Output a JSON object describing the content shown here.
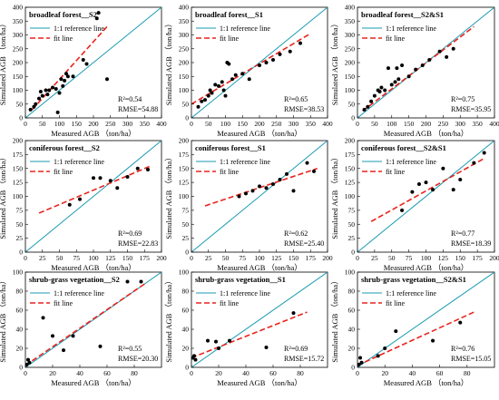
{
  "chart_data": [
    {
      "type": "scatter",
      "title": "broadleaf forest__S2",
      "xlabel": "Measured AGB （ton/ha）",
      "ylabel": "Simulated AGB （ton/ha）",
      "xlim": [
        0,
        400
      ],
      "ylim": [
        0,
        400
      ],
      "xticks": [
        0,
        50,
        100,
        150,
        200,
        250,
        300,
        350,
        400
      ],
      "yticks": [
        0,
        50,
        100,
        150,
        200,
        250,
        300,
        350,
        400
      ],
      "legend": [
        "1:1 reference line",
        "fit line"
      ],
      "r2": "R²=0.54",
      "rmse": "RMSE=54.88",
      "fit": [
        [
          20,
          30
        ],
        [
          240,
          330
        ]
      ],
      "points": [
        [
          15,
          30
        ],
        [
          25,
          40
        ],
        [
          30,
          50
        ],
        [
          40,
          70
        ],
        [
          45,
          95
        ],
        [
          50,
          80
        ],
        [
          60,
          100
        ],
        [
          65,
          85
        ],
        [
          70,
          100
        ],
        [
          80,
          110
        ],
        [
          90,
          105
        ],
        [
          95,
          20
        ],
        [
          100,
          90
        ],
        [
          105,
          140
        ],
        [
          110,
          115
        ],
        [
          115,
          135
        ],
        [
          120,
          160
        ],
        [
          125,
          150
        ],
        [
          140,
          150
        ],
        [
          170,
          210
        ],
        [
          180,
          195
        ],
        [
          210,
          360
        ],
        [
          215,
          380
        ],
        [
          240,
          140
        ]
      ]
    },
    {
      "type": "scatter",
      "title": "broadleaf forest__S1",
      "xlabel": "Measured AGB （ton/ha）",
      "ylabel": "Simulated AGB （ton/ha）",
      "xlim": [
        0,
        400
      ],
      "ylim": [
        0,
        400
      ],
      "xticks": [
        0,
        50,
        100,
        150,
        200,
        250,
        300,
        350,
        400
      ],
      "yticks": [
        0,
        50,
        100,
        150,
        200,
        250,
        300,
        350,
        400
      ],
      "legend": [
        "1:1 reference line",
        "fit line"
      ],
      "r2": "R²=0.65",
      "rmse": "RMSE=38.53",
      "fit": [
        [
          0,
          50
        ],
        [
          350,
          305
        ]
      ],
      "points": [
        [
          20,
          40
        ],
        [
          30,
          60
        ],
        [
          40,
          65
        ],
        [
          50,
          80
        ],
        [
          55,
          100
        ],
        [
          60,
          90
        ],
        [
          70,
          120
        ],
        [
          80,
          115
        ],
        [
          90,
          130
        ],
        [
          95,
          100
        ],
        [
          100,
          80
        ],
        [
          105,
          200
        ],
        [
          110,
          195
        ],
        [
          120,
          140
        ],
        [
          130,
          155
        ],
        [
          150,
          160
        ],
        [
          170,
          140
        ],
        [
          200,
          190
        ],
        [
          220,
          200
        ],
        [
          240,
          210
        ],
        [
          260,
          230
        ],
        [
          290,
          240
        ],
        [
          320,
          270
        ]
      ]
    },
    {
      "type": "scatter",
      "title": "broadleaf forest__S2&S1",
      "xlabel": "Measured AGB （ton/ha）",
      "ylabel": "Simulated AGB （ton/ha）",
      "xlim": [
        0,
        400
      ],
      "ylim": [
        0,
        400
      ],
      "xticks": [
        0,
        50,
        100,
        150,
        200,
        250,
        300,
        350,
        400
      ],
      "yticks": [
        0,
        50,
        100,
        150,
        200,
        250,
        300,
        350,
        400
      ],
      "legend": [
        "1:1 reference line",
        "fit line"
      ],
      "r2": "R²=0.75",
      "rmse": "RMSE=35.95",
      "fit": [
        [
          15,
          25
        ],
        [
          340,
          330
        ]
      ],
      "points": [
        [
          20,
          30
        ],
        [
          30,
          40
        ],
        [
          40,
          60
        ],
        [
          50,
          80
        ],
        [
          60,
          100
        ],
        [
          65,
          95
        ],
        [
          70,
          110
        ],
        [
          80,
          100
        ],
        [
          90,
          180
        ],
        [
          100,
          120
        ],
        [
          110,
          130
        ],
        [
          115,
          180
        ],
        [
          120,
          140
        ],
        [
          130,
          190
        ],
        [
          150,
          150
        ],
        [
          170,
          175
        ],
        [
          190,
          190
        ],
        [
          210,
          210
        ],
        [
          240,
          240
        ],
        [
          260,
          220
        ],
        [
          280,
          250
        ]
      ]
    },
    {
      "type": "scatter",
      "title": "coniferous forest__S2",
      "xlabel": "Measured AGB （ton/ha）",
      "ylabel": "Simulated AGB （ton/ha）",
      "xlim": [
        0,
        200
      ],
      "ylim": [
        0,
        200
      ],
      "xticks": [
        0,
        25,
        50,
        75,
        100,
        125,
        150,
        175,
        200
      ],
      "yticks": [
        0,
        25,
        50,
        75,
        100,
        125,
        150,
        175,
        200
      ],
      "legend": [
        "1:1 reference line",
        "fit line"
      ],
      "r2": "R²=0.69",
      "rmse": "RMSE=22.83",
      "fit": [
        [
          20,
          70
        ],
        [
          185,
          155
        ]
      ],
      "points": [
        [
          65,
          85
        ],
        [
          80,
          95
        ],
        [
          100,
          133
        ],
        [
          110,
          133
        ],
        [
          125,
          128
        ],
        [
          135,
          115
        ],
        [
          150,
          135
        ],
        [
          165,
          150
        ],
        [
          180,
          148
        ]
      ]
    },
    {
      "type": "scatter",
      "title": "coniferous forest__S1",
      "xlabel": "Measured AGB （ton/ha）",
      "ylabel": "Simulated AGB （ton/ha）",
      "xlim": [
        0,
        200
      ],
      "ylim": [
        0,
        200
      ],
      "xticks": [
        0,
        25,
        50,
        75,
        100,
        125,
        150,
        175,
        200
      ],
      "yticks": [
        0,
        25,
        50,
        75,
        100,
        125,
        150,
        175,
        200
      ],
      "legend": [
        "1:1 reference line",
        "fit line"
      ],
      "r2": "R²=0.62",
      "rmse": "RMSE=25.40",
      "fit": [
        [
          20,
          83
        ],
        [
          185,
          150
        ]
      ],
      "points": [
        [
          70,
          100
        ],
        [
          80,
          105
        ],
        [
          90,
          110
        ],
        [
          100,
          118
        ],
        [
          110,
          115
        ],
        [
          120,
          122
        ],
        [
          130,
          130
        ],
        [
          140,
          140
        ],
        [
          150,
          110
        ],
        [
          170,
          160
        ],
        [
          180,
          145
        ]
      ]
    },
    {
      "type": "scatter",
      "title": "coniferous forest__S2&S1",
      "xlabel": "Measured AGB （ton/ha）",
      "ylabel": "Simulated AGB （ton/ha）",
      "xlim": [
        0,
        200
      ],
      "ylim": [
        0,
        200
      ],
      "xticks": [
        0,
        25,
        50,
        75,
        100,
        125,
        150,
        175,
        200
      ],
      "yticks": [
        0,
        25,
        50,
        75,
        100,
        125,
        150,
        175,
        200
      ],
      "legend": [
        "1:1 reference line",
        "fit line"
      ],
      "r2": "R²=0.77",
      "rmse": "RMSE=18.39",
      "fit": [
        [
          20,
          55
        ],
        [
          185,
          168
        ]
      ],
      "points": [
        [
          65,
          75
        ],
        [
          80,
          108
        ],
        [
          90,
          122
        ],
        [
          100,
          125
        ],
        [
          110,
          112
        ],
        [
          125,
          150
        ],
        [
          140,
          112
        ],
        [
          150,
          130
        ],
        [
          170,
          160
        ],
        [
          185,
          178
        ]
      ]
    },
    {
      "type": "scatter",
      "title": "shrub-grass vegetation__S2",
      "xlabel": "Measured AGB （ton/ha）",
      "ylabel": "Simulated AGB （ton/ha）",
      "xlim": [
        0,
        100
      ],
      "ylim": [
        0,
        100
      ],
      "xticks": [
        0,
        20,
        40,
        60,
        80
      ],
      "yticks": [
        0,
        20,
        40,
        60,
        80,
        100
      ],
      "legend": [
        "1:1 reference line",
        "fit line"
      ],
      "r2": "R²=0.55",
      "rmse": "RMSE=20.30",
      "fit": [
        [
          0,
          2
        ],
        [
          88,
          88
        ]
      ],
      "points": [
        [
          1,
          3
        ],
        [
          2,
          8
        ],
        [
          3,
          5
        ],
        [
          13,
          52
        ],
        [
          20,
          33
        ],
        [
          28,
          18
        ],
        [
          35,
          33
        ],
        [
          55,
          22
        ],
        [
          75,
          90
        ],
        [
          85,
          90
        ]
      ]
    },
    {
      "type": "scatter",
      "title": "shrub-grass vegetation__S1",
      "xlabel": "Measured AGB （ton/ha）",
      "ylabel": "Simulated AGB （ton/ha）",
      "xlim": [
        0,
        100
      ],
      "ylim": [
        0,
        100
      ],
      "xticks": [
        0,
        20,
        40,
        60,
        80
      ],
      "yticks": [
        0,
        20,
        40,
        60,
        80,
        100
      ],
      "legend": [
        "1:1 reference line",
        "fit line"
      ],
      "r2": "R²=0.69",
      "rmse": "RMSE=15.72",
      "fit": [
        [
          0,
          10
        ],
        [
          85,
          58
        ]
      ],
      "points": [
        [
          1,
          10
        ],
        [
          2,
          12
        ],
        [
          3,
          8
        ],
        [
          12,
          28
        ],
        [
          18,
          27
        ],
        [
          20,
          20
        ],
        [
          28,
          28
        ],
        [
          55,
          21
        ],
        [
          75,
          57
        ]
      ]
    },
    {
      "type": "scatter",
      "title": "shrub-grass vegetation__S2&S1",
      "xlabel": "Measured AGB （ton/ha）",
      "ylabel": "Simulated AGB （ton/ha）",
      "xlim": [
        0,
        100
      ],
      "ylim": [
        0,
        100
      ],
      "xticks": [
        0,
        20,
        40,
        60,
        80
      ],
      "yticks": [
        0,
        20,
        40,
        60,
        80,
        100
      ],
      "legend": [
        "1:1 reference line",
        "fit line"
      ],
      "r2": "R²=0.76",
      "rmse": "RMSE=15.05",
      "fit": [
        [
          0,
          2
        ],
        [
          85,
          58
        ]
      ],
      "points": [
        [
          1,
          3
        ],
        [
          2,
          10
        ],
        [
          3,
          5
        ],
        [
          15,
          12
        ],
        [
          20,
          20
        ],
        [
          28,
          38
        ],
        [
          55,
          28
        ],
        [
          75,
          47
        ]
      ]
    }
  ]
}
